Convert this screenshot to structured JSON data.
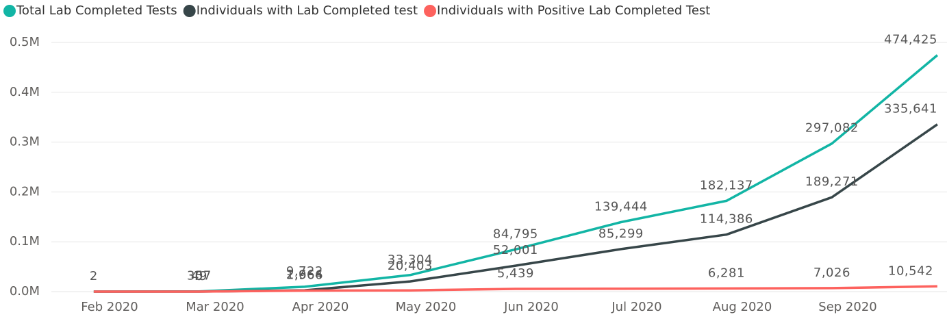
{
  "chart_data": {
    "type": "line",
    "x": [
      "2020-01",
      "2020-02",
      "2020-03",
      "2020-04",
      "2020-05",
      "2020-06",
      "2020-07",
      "2020-08",
      "2020-09"
    ],
    "series": [
      {
        "name": "Total Lab Completed Tests",
        "color": "#12b5a5",
        "values": [
          2,
          357,
          9722,
          33304,
          84795,
          139444,
          182137,
          297082,
          474425
        ],
        "value_labels": [
          "2",
          "357",
          "9,722",
          "33,304",
          "84,795",
          "139,444",
          "182,137",
          "297,082",
          "474,425"
        ]
      },
      {
        "name": "Individuals with Lab Completed test",
        "color": "#374649",
        "values": [
          0,
          49,
          2664,
          20403,
          52001,
          85299,
          114386,
          189271,
          335641
        ],
        "value_labels": [
          null,
          "49",
          "2,664",
          "20,403",
          "52,001",
          "85,299",
          "114,386",
          "189,271",
          "335,641"
        ]
      },
      {
        "name": "Individuals with Positive  Lab Completed Test",
        "color": "#fd625e",
        "values": [
          0,
          0,
          1966,
          2500,
          5439,
          5900,
          6281,
          7026,
          10542
        ],
        "value_labels": [
          null,
          "0",
          "1,966",
          null,
          "5,439",
          null,
          "6,281",
          "7,026",
          "10,542"
        ]
      }
    ],
    "xlim": [
      "2020-01",
      "2020-10"
    ],
    "xticks": [
      {
        "value": "2020-02",
        "label": "Feb 2020"
      },
      {
        "value": "2020-03",
        "label": "Mar 2020"
      },
      {
        "value": "2020-04",
        "label": "Apr 2020"
      },
      {
        "value": "2020-05",
        "label": "May 2020"
      },
      {
        "value": "2020-06",
        "label": "Jun 2020"
      },
      {
        "value": "2020-07",
        "label": "Jul 2020"
      },
      {
        "value": "2020-08",
        "label": "Aug 2020"
      },
      {
        "value": "2020-09",
        "label": "Sep 2020"
      }
    ],
    "ylim": [
      0,
      500000
    ],
    "yticks": [
      {
        "value": 0,
        "label": "0.0M"
      },
      {
        "value": 100000,
        "label": "0.1M"
      },
      {
        "value": 200000,
        "label": "0.2M"
      },
      {
        "value": 300000,
        "label": "0.3M"
      },
      {
        "value": 400000,
        "label": "0.4M"
      },
      {
        "value": 500000,
        "label": "0.5M"
      }
    ],
    "grid": true
  }
}
